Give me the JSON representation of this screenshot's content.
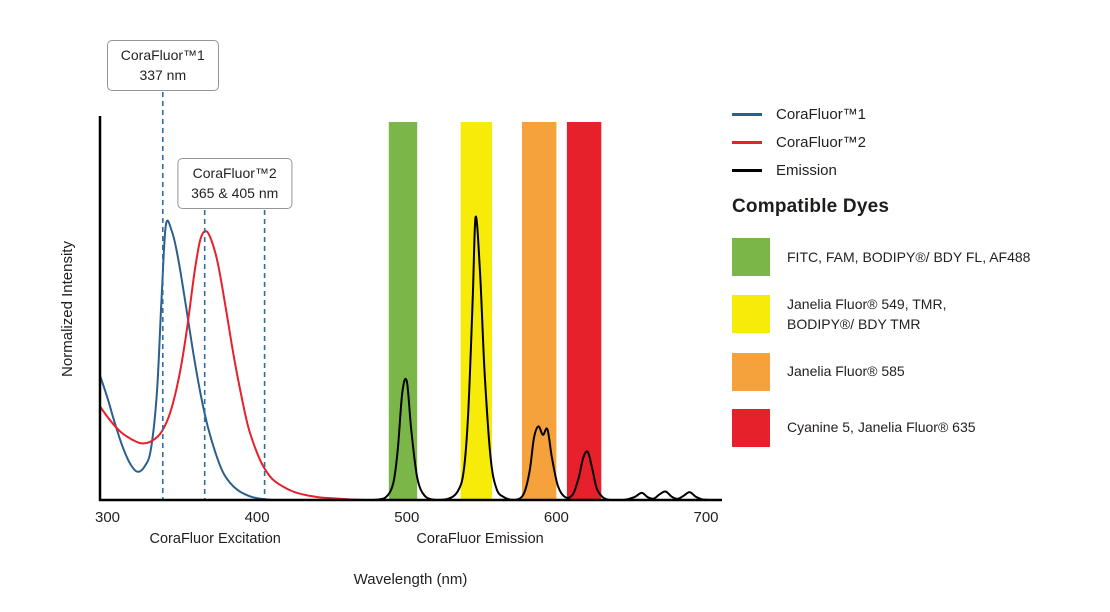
{
  "chart_data": {
    "type": "line",
    "title": "",
    "xlabel": "Wavelength (nm)",
    "ylabel": "Normalized Intensity",
    "xlim": [
      295,
      710
    ],
    "ylim": [
      0,
      1.35
    ],
    "xticks": [
      300,
      400,
      500,
      600,
      700
    ],
    "x_section_labels": [
      {
        "text": "CoraFluor Excitation",
        "center_nm": 372
      },
      {
        "text": "CoraFluor Emission",
        "center_nm": 549
      }
    ],
    "annotation_line_color": "#2e6da6",
    "series": [
      {
        "name": "CoraFluor™1",
        "role": "excitation",
        "color": "#2b5f8c",
        "x": [
          295,
          300,
          305,
          310,
          315,
          320,
          325,
          329,
          333,
          336,
          339,
          343,
          347,
          352,
          357,
          362,
          367,
          372,
          377,
          382,
          387,
          392,
          397,
          403,
          410
        ],
        "y": [
          0.44,
          0.36,
          0.27,
          0.19,
          0.13,
          0.1,
          0.12,
          0.18,
          0.38,
          0.7,
          0.97,
          0.95,
          0.86,
          0.7,
          0.53,
          0.38,
          0.26,
          0.17,
          0.1,
          0.06,
          0.035,
          0.02,
          0.01,
          0.004,
          0.0
        ]
      },
      {
        "name": "CoraFluor™2",
        "role": "excitation",
        "color": "#e6212b",
        "x": [
          295,
          302,
          309,
          316,
          323,
          330,
          336,
          342,
          348,
          353,
          358,
          362,
          366,
          370,
          374,
          379,
          384,
          389,
          394,
          399,
          404,
          410,
          417,
          424,
          432,
          441,
          450,
          460,
          472
        ],
        "y": [
          0.33,
          0.28,
          0.24,
          0.215,
          0.2,
          0.21,
          0.24,
          0.31,
          0.44,
          0.6,
          0.8,
          0.92,
          0.95,
          0.91,
          0.83,
          0.68,
          0.52,
          0.38,
          0.26,
          0.18,
          0.12,
          0.075,
          0.048,
          0.03,
          0.018,
          0.01,
          0.006,
          0.003,
          0.0
        ]
      },
      {
        "name": "Emission",
        "role": "emission",
        "color": "#000000",
        "x": [
          478,
          486,
          491,
          494,
          497,
          500,
          503,
          507,
          512,
          520,
          528,
          534,
          538,
          541,
          544,
          546,
          549,
          552,
          556,
          560,
          565,
          572,
          578,
          582,
          585,
          588,
          591,
          594,
          597,
          601,
          606,
          611,
          615,
          618,
          621,
          624,
          627,
          631,
          636,
          645,
          652,
          657,
          661,
          665,
          669,
          673,
          677,
          681,
          685,
          689,
          693,
          697,
          702
        ],
        "y": [
          0.0,
          0.01,
          0.06,
          0.18,
          0.38,
          0.42,
          0.25,
          0.08,
          0.015,
          0.0,
          0.005,
          0.03,
          0.1,
          0.3,
          0.7,
          1.0,
          0.8,
          0.45,
          0.15,
          0.04,
          0.01,
          0.0,
          0.02,
          0.1,
          0.22,
          0.26,
          0.23,
          0.25,
          0.15,
          0.05,
          0.01,
          0.02,
          0.08,
          0.15,
          0.17,
          0.11,
          0.04,
          0.01,
          0.0,
          0.0,
          0.01,
          0.025,
          0.01,
          0.005,
          0.02,
          0.03,
          0.012,
          0.004,
          0.015,
          0.028,
          0.012,
          0.003,
          0.0
        ]
      }
    ],
    "filter_bands": [
      {
        "color": "#7ab648",
        "from_nm": 488,
        "to_nm": 507,
        "dyes": "FITC, FAM, BODIPY®/ BDY FL, AF488"
      },
      {
        "color": "#f7eb0a",
        "from_nm": 536,
        "to_nm": 557,
        "dyes": "Janelia Fluor® 549, TMR, BODIPY®/ BDY TMR"
      },
      {
        "color": "#f5a23c",
        "from_nm": 577,
        "to_nm": 600,
        "dyes": "Janelia Fluor® 585"
      },
      {
        "color": "#e6212b",
        "from_nm": 607,
        "to_nm": 630,
        "dyes": "Cyanine 5, Janelia Fluor® 635"
      }
    ],
    "annotations": [
      {
        "title": "CoraFluor™1",
        "value": "337 nm",
        "lines_nm": [
          337
        ]
      },
      {
        "title": "CoraFluor™2",
        "value": "365 & 405 nm",
        "lines_nm": [
          365,
          405
        ]
      }
    ],
    "legend": [
      {
        "label": "CoraFluor™1",
        "color": "#2b5f8c"
      },
      {
        "label": "CoraFluor™2",
        "color": "#e6212b"
      },
      {
        "label": "Emission",
        "color": "#000000"
      }
    ],
    "compatible_dyes": {
      "heading": "Compatible Dyes",
      "items": [
        {
          "color": "#7ab648",
          "label": "FITC, FAM, BODIPY®/ BDY FL, AF488"
        },
        {
          "color": "#f7eb0a",
          "label": "Janelia Fluor® 549, TMR,\nBODIPY®/ BDY TMR"
        },
        {
          "color": "#f5a23c",
          "label": "Janelia Fluor® 585"
        },
        {
          "color": "#e6212b",
          "label": "Cyanine 5, Janelia Fluor® 635"
        }
      ]
    }
  }
}
